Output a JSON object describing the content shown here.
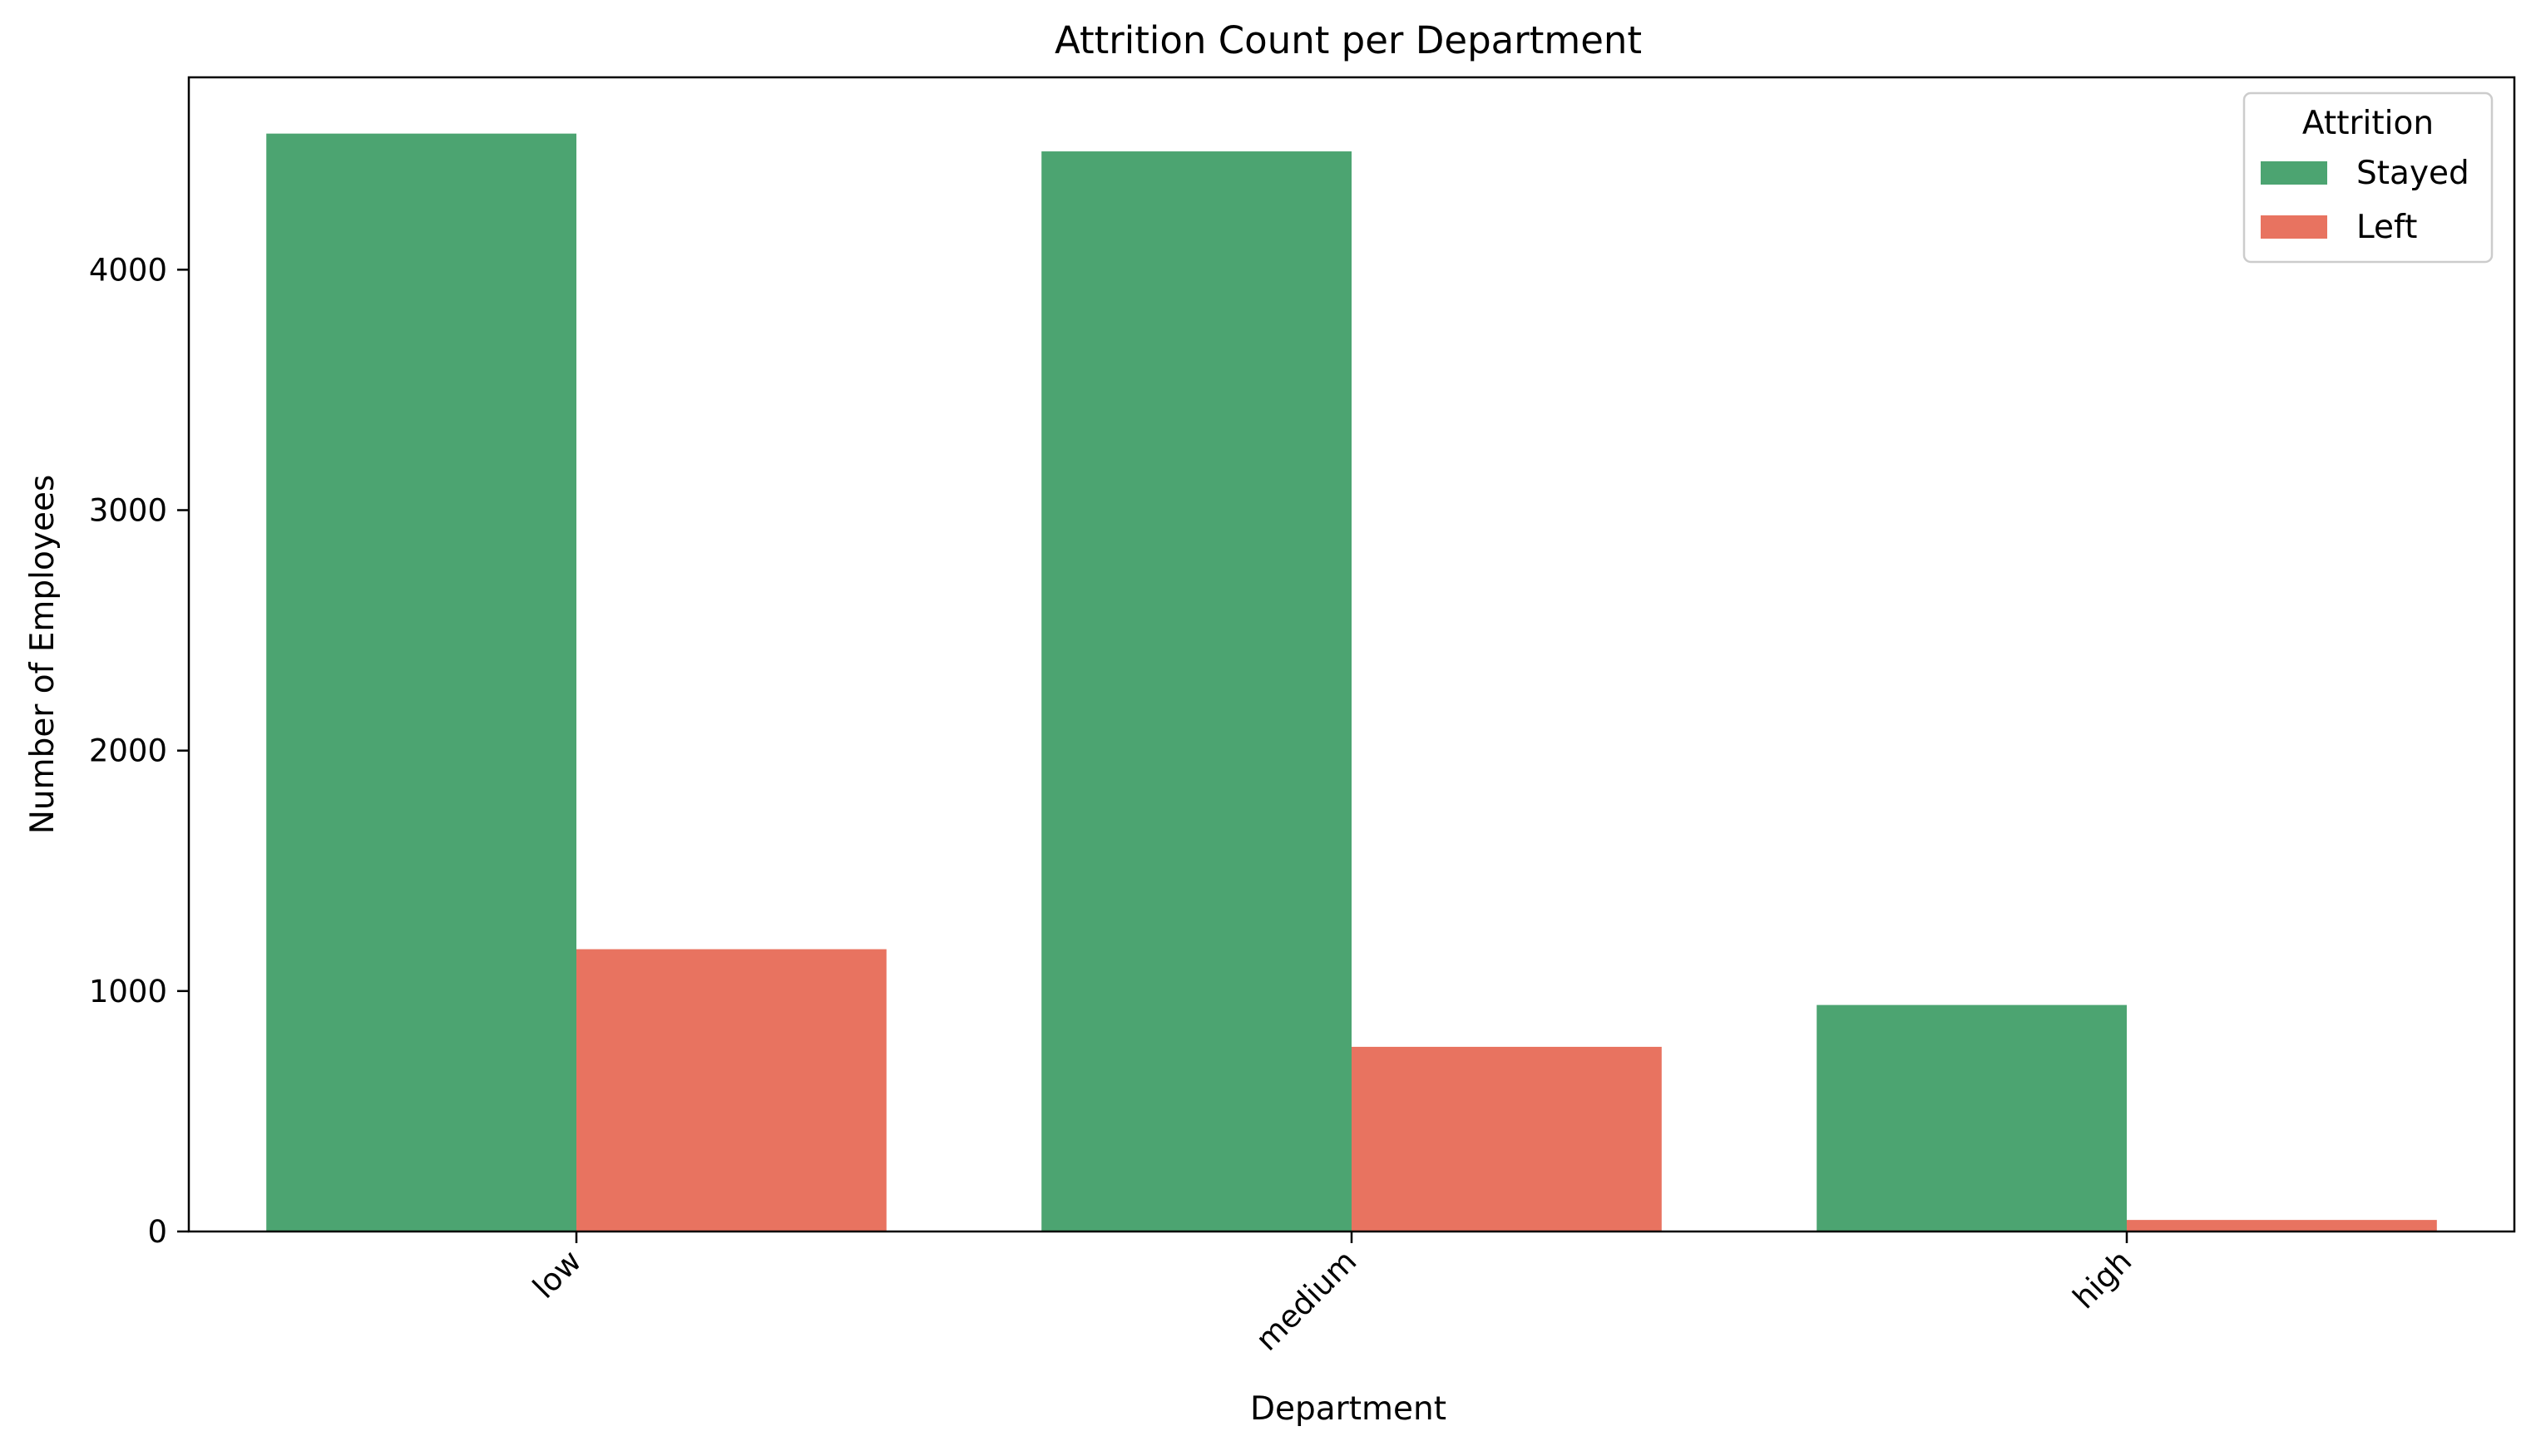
{
  "chart_data": {
    "type": "bar",
    "title": "Attrition Count per Department",
    "xlabel": "Department",
    "ylabel": "Number of Employees",
    "categories": [
      "low",
      "medium",
      "high"
    ],
    "series": [
      {
        "name": "Stayed",
        "color": "#4ca471",
        "values": [
          4566,
          4492,
          942
        ]
      },
      {
        "name": "Left",
        "color": "#e87360",
        "values": [
          1174,
          768,
          48
        ]
      }
    ],
    "ylim": [
      0,
      4800
    ],
    "yticks": [
      0,
      1000,
      2000,
      3000,
      4000
    ],
    "ytick_labels": [
      "0",
      "1000",
      "2000",
      "3000",
      "4000"
    ],
    "grid": false,
    "legend": {
      "title": "Attrition",
      "placement": "top-right"
    },
    "xtick_rotation": 45
  }
}
